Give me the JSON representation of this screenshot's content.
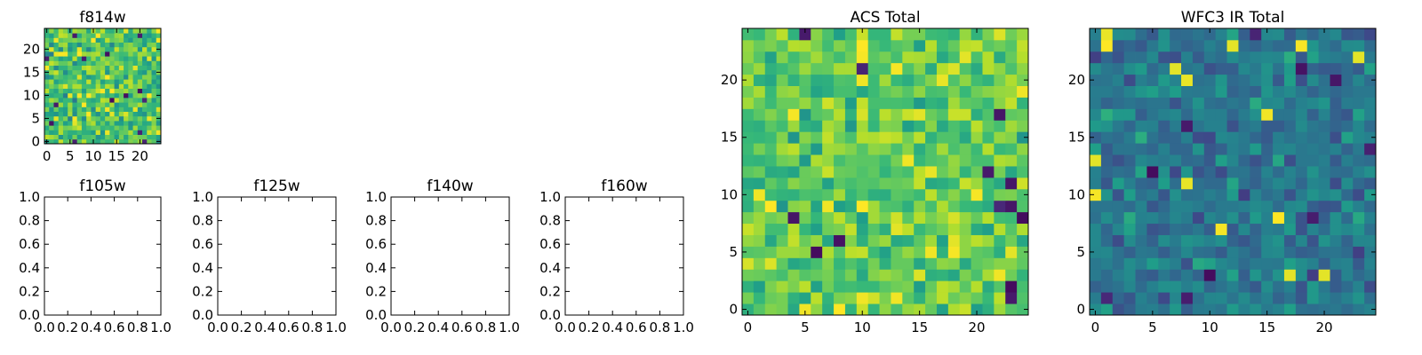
{
  "chart_data": [
    {
      "type": "heatmap",
      "title": "f814w",
      "xticks": [
        0,
        5,
        10,
        15,
        20
      ],
      "yticks": [
        0,
        5,
        10,
        15,
        20
      ],
      "xlim": [
        -0.5,
        24.5
      ],
      "ylim": [
        -0.5,
        24.5
      ],
      "grid_size": [
        25,
        25
      ],
      "colormap": "viridis",
      "value_range": [
        0,
        1
      ],
      "seed": 814,
      "mean": 0.72,
      "spread": 0.18,
      "values": []
    },
    {
      "type": "heatmap",
      "title": "f105w",
      "empty": true,
      "xticks": [
        0.0,
        0.2,
        0.4,
        0.6,
        0.8,
        1.0
      ],
      "yticks": [
        0.0,
        0.2,
        0.4,
        0.6,
        0.8,
        1.0
      ],
      "xlim": [
        0,
        1
      ],
      "ylim": [
        0,
        1
      ]
    },
    {
      "type": "heatmap",
      "title": "f125w",
      "empty": true,
      "xticks": [
        0.0,
        0.2,
        0.4,
        0.6,
        0.8,
        1.0
      ],
      "yticks": [
        0.0,
        0.2,
        0.4,
        0.6,
        0.8,
        1.0
      ],
      "xlim": [
        0,
        1
      ],
      "ylim": [
        0,
        1
      ]
    },
    {
      "type": "heatmap",
      "title": "f140w",
      "empty": true,
      "xticks": [
        0.0,
        0.2,
        0.4,
        0.6,
        0.8,
        1.0
      ],
      "yticks": [
        0.0,
        0.2,
        0.4,
        0.6,
        0.8,
        1.0
      ],
      "xlim": [
        0,
        1
      ],
      "ylim": [
        0,
        1
      ]
    },
    {
      "type": "heatmap",
      "title": "f160w",
      "empty": true,
      "xticks": [
        0.0,
        0.2,
        0.4,
        0.6,
        0.8,
        1.0
      ],
      "yticks": [
        0.0,
        0.2,
        0.4,
        0.6,
        0.8,
        1.0
      ],
      "xlim": [
        0,
        1
      ],
      "ylim": [
        0,
        1
      ]
    },
    {
      "type": "heatmap",
      "title": "ACS Total",
      "xticks": [
        0,
        5,
        10,
        15,
        20
      ],
      "yticks": [
        0,
        5,
        10,
        15,
        20
      ],
      "xlim": [
        -0.5,
        24.5
      ],
      "ylim": [
        -0.5,
        24.5
      ],
      "grid_size": [
        25,
        25
      ],
      "colormap": "viridis",
      "value_range": [
        0,
        1
      ],
      "seed": 1001,
      "mean": 0.75,
      "spread": 0.15,
      "values": []
    },
    {
      "type": "heatmap",
      "title": "WFC3 IR Total",
      "xticks": [
        0,
        5,
        10,
        15,
        20
      ],
      "yticks": [
        0,
        5,
        10,
        15,
        20
      ],
      "xlim": [
        -0.5,
        24.5
      ],
      "ylim": [
        -0.5,
        24.5
      ],
      "grid_size": [
        25,
        25
      ],
      "colormap": "viridis",
      "value_range": [
        0,
        1
      ],
      "seed": 3003,
      "mean": 0.4,
      "spread": 0.12,
      "values": []
    }
  ]
}
